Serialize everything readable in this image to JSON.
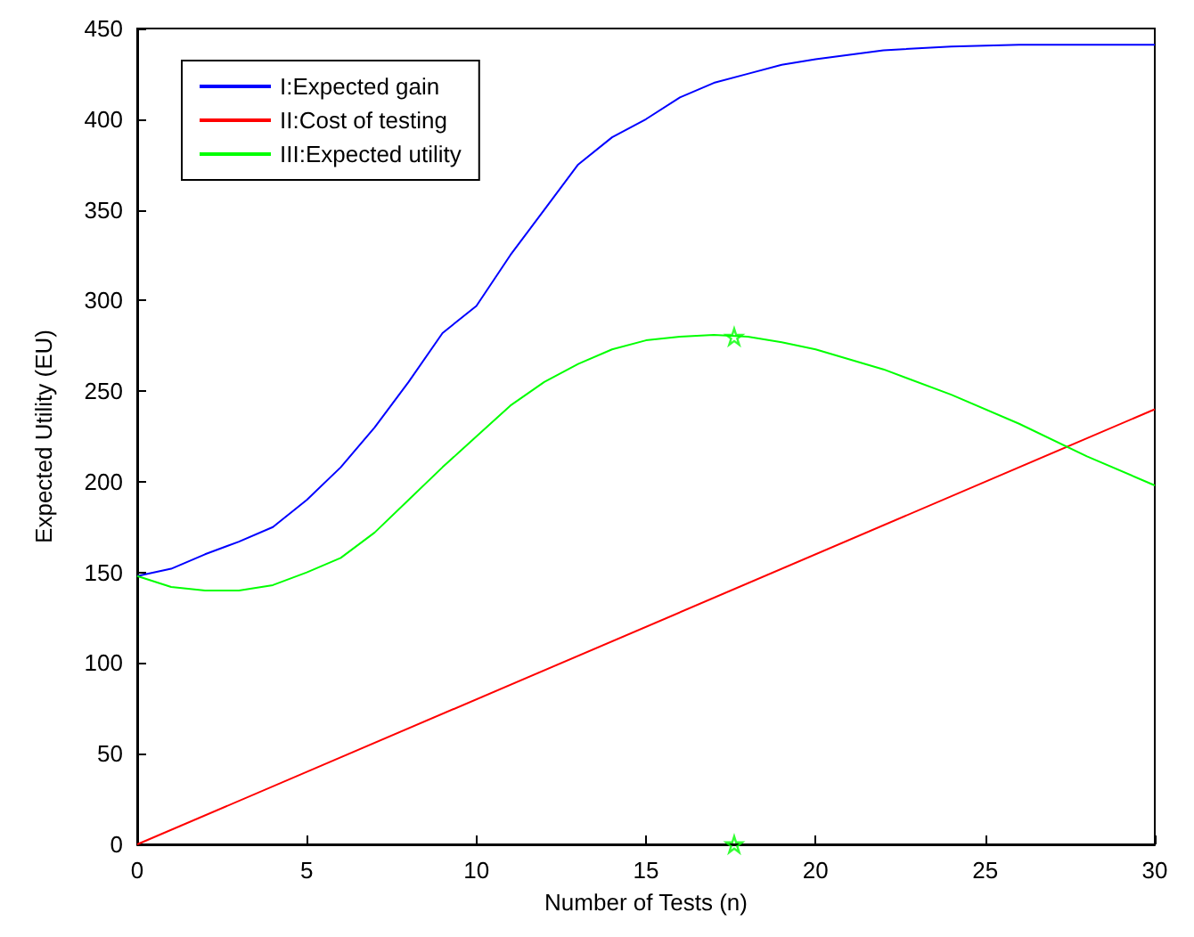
{
  "chart_data": {
    "type": "line",
    "xlabel": "Number of Tests (n)",
    "ylabel": "Expected Utility (EU)",
    "xlim": [
      0,
      30
    ],
    "ylim": [
      0,
      450
    ],
    "xticks": [
      0,
      5,
      10,
      15,
      20,
      25,
      30
    ],
    "yticks": [
      0,
      50,
      100,
      150,
      200,
      250,
      300,
      350,
      400,
      450
    ],
    "grid": false,
    "legend": "top left",
    "marker": "none",
    "series": [
      {
        "name": "I:Expected gain",
        "color": "#0000ff",
        "x": [
          0,
          1,
          2,
          3,
          4,
          5,
          6,
          7,
          8,
          9,
          10,
          11,
          12,
          13,
          14,
          15,
          16,
          17,
          18,
          19,
          20,
          22,
          24,
          26,
          28,
          30
        ],
        "values": [
          148,
          152,
          160,
          167,
          175,
          190,
          208,
          230,
          255,
          282,
          297,
          325,
          350,
          375,
          390,
          400,
          412,
          420,
          425,
          430,
          433,
          438,
          440,
          441,
          441,
          441
        ]
      },
      {
        "name": "II:Cost of testing",
        "color": "#ff0000",
        "x": [
          0,
          30
        ],
        "values": [
          0,
          240
        ]
      },
      {
        "name": "III:Expected utility",
        "color": "#00ff00",
        "x": [
          0,
          1,
          2,
          3,
          4,
          5,
          6,
          7,
          8,
          9,
          10,
          11,
          12,
          13,
          14,
          15,
          16,
          17,
          18,
          19,
          20,
          22,
          24,
          26,
          28,
          30
        ],
        "values": [
          148,
          142,
          140,
          140,
          143,
          150,
          158,
          172,
          190,
          208,
          225,
          242,
          255,
          265,
          273,
          278,
          280,
          281,
          280,
          277,
          273,
          262,
          248,
          232,
          214,
          198
        ]
      },
      {
        "type": "scatter",
        "marker": "star",
        "color": "#00ff00",
        "x": [
          17.6,
          17.6
        ],
        "values": [
          280,
          0
        ]
      }
    ]
  }
}
